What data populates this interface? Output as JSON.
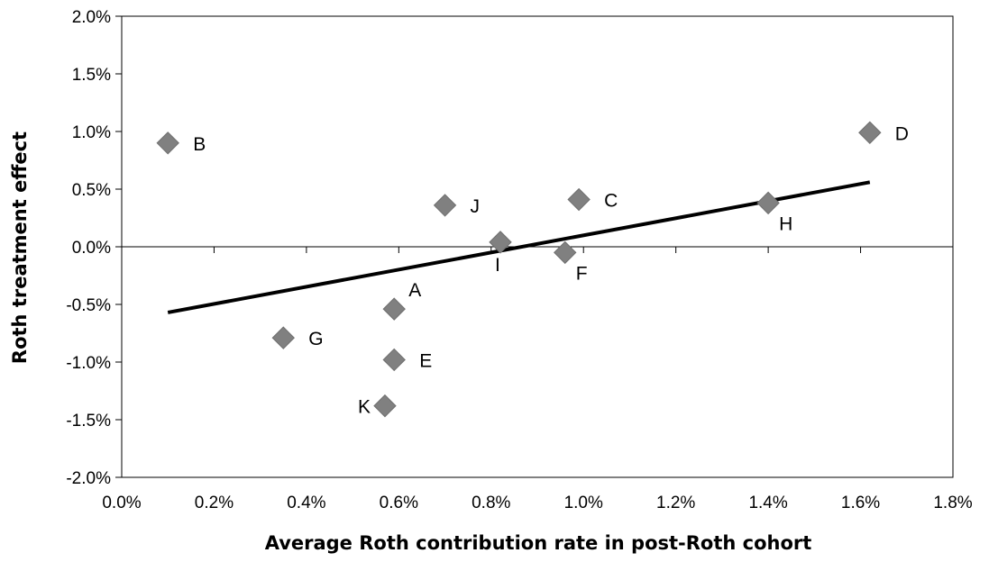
{
  "chart_data": {
    "type": "scatter",
    "title": "",
    "xlabel": "Average Roth contribution rate in post-Roth cohort",
    "ylabel": "Roth treatment effect",
    "xlim": [
      0.0,
      1.8
    ],
    "ylim": [
      -2.0,
      2.0
    ],
    "x_unit": "%",
    "y_unit": "%",
    "x_ticks": [
      0.0,
      0.2,
      0.4,
      0.6,
      0.8,
      1.0,
      1.2,
      1.4,
      1.6,
      1.8
    ],
    "x_tick_labels": [
      "0.0%",
      "0.2%",
      "0.4%",
      "0.6%",
      "0.8%",
      "1.0%",
      "1.2%",
      "1.4%",
      "1.6%",
      "1.8%"
    ],
    "y_ticks": [
      2.0,
      1.5,
      1.0,
      0.5,
      0.0,
      -0.5,
      -1.0,
      -1.5,
      -2.0
    ],
    "y_tick_labels": [
      "2.0%",
      "1.5%",
      "1.0%",
      "0.5%",
      "0.0%",
      "-0.5%",
      "-1.0%",
      "-1.5%",
      "-2.0%"
    ],
    "grid": false,
    "legend": "none",
    "marker": "diamond",
    "marker_color": "#808080",
    "series": [
      {
        "points": [
          {
            "label": "B",
            "x": 0.1,
            "y": 0.9,
            "label_pos": "right"
          },
          {
            "label": "D",
            "x": 1.62,
            "y": 0.99,
            "label_pos": "right"
          },
          {
            "label": "J",
            "x": 0.7,
            "y": 0.36,
            "label_pos": "right"
          },
          {
            "label": "C",
            "x": 0.99,
            "y": 0.41,
            "label_pos": "right"
          },
          {
            "label": "H",
            "x": 1.4,
            "y": 0.38,
            "label_pos": "below-right"
          },
          {
            "label": "I",
            "x": 0.82,
            "y": 0.04,
            "label_pos": "below"
          },
          {
            "label": "F",
            "x": 0.96,
            "y": -0.05,
            "label_pos": "below-right"
          },
          {
            "label": "A",
            "x": 0.59,
            "y": -0.54,
            "label_pos": "above-right"
          },
          {
            "label": "G",
            "x": 0.35,
            "y": -0.79,
            "label_pos": "right"
          },
          {
            "label": "E",
            "x": 0.59,
            "y": -0.98,
            "label_pos": "right"
          },
          {
            "label": "K",
            "x": 0.57,
            "y": -1.38,
            "label_pos": "left"
          }
        ]
      }
    ],
    "trendline": {
      "type": "linear",
      "color": "#000000",
      "from": {
        "x": 0.1,
        "y": -0.57
      },
      "to": {
        "x": 1.62,
        "y": 0.56
      }
    }
  }
}
